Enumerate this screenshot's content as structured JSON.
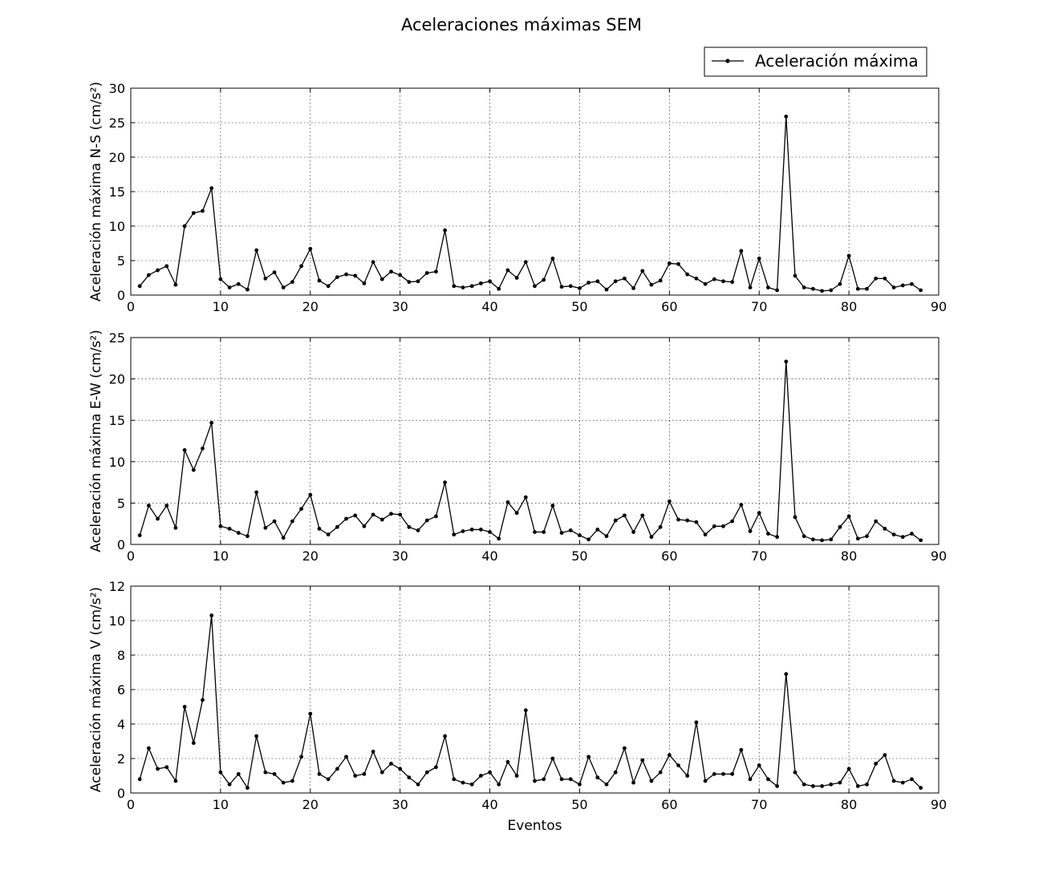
{
  "figure": {
    "title": "Aceleraciones máximas SEM",
    "xlabel": "Eventos",
    "legend": {
      "label": "Aceleración máxima",
      "position": "top-right"
    }
  },
  "chart_data": [
    {
      "type": "line",
      "title": "",
      "xlabel": "",
      "ylabel": "Aceleración máxima N-S (cm/s²)",
      "xlim": [
        0,
        90
      ],
      "ylim": [
        0,
        30
      ],
      "xticks": [
        0,
        10,
        20,
        30,
        40,
        50,
        60,
        70,
        80,
        90
      ],
      "yticks": [
        0,
        5,
        10,
        15,
        20,
        25,
        30
      ],
      "grid": true,
      "color": "#000000",
      "series": [
        {
          "x": [
            1,
            2,
            3,
            4,
            5,
            6,
            7,
            8,
            9,
            10,
            11,
            12,
            13,
            14,
            15,
            16,
            17,
            18,
            19,
            20,
            21,
            22,
            23,
            24,
            25,
            26,
            27,
            28,
            29,
            30,
            31,
            32,
            33,
            34,
            35,
            36,
            37,
            38,
            39,
            40,
            41,
            42,
            43,
            44,
            45,
            46,
            47,
            48,
            49,
            50,
            51,
            52,
            53,
            54,
            55,
            56,
            57,
            58,
            59,
            60,
            61,
            62,
            63,
            64,
            65,
            66,
            67,
            68,
            69,
            70,
            71,
            72,
            73,
            74,
            75,
            76,
            77,
            78,
            79,
            80,
            81,
            82,
            83,
            84,
            85,
            86,
            87,
            88
          ],
          "values": [
            1.3,
            2.9,
            3.6,
            4.2,
            1.5,
            10.0,
            11.9,
            12.2,
            15.5,
            2.3,
            1.1,
            1.6,
            0.8,
            6.5,
            2.4,
            3.3,
            1.1,
            1.9,
            4.2,
            6.7,
            2.1,
            1.3,
            2.6,
            3.0,
            2.8,
            1.7,
            4.8,
            2.3,
            3.4,
            2.9,
            1.9,
            2.0,
            3.2,
            3.4,
            9.4,
            1.3,
            1.1,
            1.3,
            1.7,
            2.0,
            0.9,
            3.6,
            2.5,
            4.8,
            1.3,
            2.2,
            5.3,
            1.2,
            1.3,
            1.0,
            1.8,
            2.0,
            0.8,
            2.0,
            2.4,
            1.0,
            3.5,
            1.5,
            2.1,
            4.6,
            4.5,
            3.0,
            2.4,
            1.6,
            2.3,
            2.0,
            1.9,
            6.4,
            1.1,
            5.3,
            1.1,
            0.7,
            25.9,
            2.8,
            1.1,
            0.9,
            0.6,
            0.7,
            1.6,
            5.7,
            0.9,
            0.9,
            2.4,
            2.4,
            1.1,
            1.4,
            1.6,
            0.7
          ]
        }
      ]
    },
    {
      "type": "line",
      "title": "",
      "xlabel": "",
      "ylabel": "Aceleración máxima E-W (cm/s²)",
      "xlim": [
        0,
        90
      ],
      "ylim": [
        0,
        25
      ],
      "xticks": [
        0,
        10,
        20,
        30,
        40,
        50,
        60,
        70,
        80,
        90
      ],
      "yticks": [
        0,
        5,
        10,
        15,
        20,
        25
      ],
      "grid": true,
      "color": "#000000",
      "series": [
        {
          "x": [
            1,
            2,
            3,
            4,
            5,
            6,
            7,
            8,
            9,
            10,
            11,
            12,
            13,
            14,
            15,
            16,
            17,
            18,
            19,
            20,
            21,
            22,
            23,
            24,
            25,
            26,
            27,
            28,
            29,
            30,
            31,
            32,
            33,
            34,
            35,
            36,
            37,
            38,
            39,
            40,
            41,
            42,
            43,
            44,
            45,
            46,
            47,
            48,
            49,
            50,
            51,
            52,
            53,
            54,
            55,
            56,
            57,
            58,
            59,
            60,
            61,
            62,
            63,
            64,
            65,
            66,
            67,
            68,
            69,
            70,
            71,
            72,
            73,
            74,
            75,
            76,
            77,
            78,
            79,
            80,
            81,
            82,
            83,
            84,
            85,
            86,
            87,
            88
          ],
          "values": [
            1.1,
            4.7,
            3.1,
            4.7,
            2.0,
            11.4,
            9.0,
            11.6,
            14.7,
            2.2,
            1.9,
            1.4,
            1.0,
            6.3,
            2.0,
            2.8,
            0.8,
            2.8,
            4.3,
            6.0,
            1.9,
            1.2,
            2.1,
            3.1,
            3.5,
            2.2,
            3.6,
            3.0,
            3.7,
            3.6,
            2.1,
            1.7,
            2.9,
            3.4,
            7.5,
            1.2,
            1.6,
            1.8,
            1.8,
            1.5,
            0.7,
            5.1,
            3.8,
            5.7,
            1.5,
            1.5,
            4.7,
            1.4,
            1.7,
            1.1,
            0.6,
            1.8,
            1.0,
            2.9,
            3.5,
            1.5,
            3.5,
            0.9,
            2.1,
            5.2,
            3.0,
            2.9,
            2.7,
            1.2,
            2.2,
            2.2,
            2.8,
            4.8,
            1.6,
            3.8,
            1.3,
            0.9,
            22.1,
            3.3,
            1.0,
            0.6,
            0.5,
            0.6,
            2.1,
            3.4,
            0.7,
            1.0,
            2.8,
            1.9,
            1.2,
            0.9,
            1.3,
            0.5
          ]
        }
      ]
    },
    {
      "type": "line",
      "title": "",
      "xlabel": "Eventos",
      "ylabel": "Aceleración máxima V (cm/s²)",
      "xlim": [
        0,
        90
      ],
      "ylim": [
        0,
        12
      ],
      "xticks": [
        0,
        10,
        20,
        30,
        40,
        50,
        60,
        70,
        80,
        90
      ],
      "yticks": [
        0,
        2,
        4,
        6,
        8,
        10,
        12
      ],
      "grid": true,
      "color": "#000000",
      "series": [
        {
          "x": [
            1,
            2,
            3,
            4,
            5,
            6,
            7,
            8,
            9,
            10,
            11,
            12,
            13,
            14,
            15,
            16,
            17,
            18,
            19,
            20,
            21,
            22,
            23,
            24,
            25,
            26,
            27,
            28,
            29,
            30,
            31,
            32,
            33,
            34,
            35,
            36,
            37,
            38,
            39,
            40,
            41,
            42,
            43,
            44,
            45,
            46,
            47,
            48,
            49,
            50,
            51,
            52,
            53,
            54,
            55,
            56,
            57,
            58,
            59,
            60,
            61,
            62,
            63,
            64,
            65,
            66,
            67,
            68,
            69,
            70,
            71,
            72,
            73,
            74,
            75,
            76,
            77,
            78,
            79,
            80,
            81,
            82,
            83,
            84,
            85,
            86,
            87,
            88
          ],
          "values": [
            0.8,
            2.6,
            1.4,
            1.5,
            0.7,
            5.0,
            2.9,
            5.4,
            10.3,
            1.2,
            0.5,
            1.1,
            0.3,
            3.3,
            1.2,
            1.1,
            0.6,
            0.7,
            2.1,
            4.6,
            1.1,
            0.8,
            1.4,
            2.1,
            1.0,
            1.1,
            2.4,
            1.2,
            1.7,
            1.4,
            0.9,
            0.5,
            1.2,
            1.5,
            3.3,
            0.8,
            0.6,
            0.5,
            1.0,
            1.2,
            0.5,
            1.8,
            1.0,
            4.8,
            0.7,
            0.8,
            2.0,
            0.8,
            0.8,
            0.5,
            2.1,
            0.9,
            0.5,
            1.2,
            2.6,
            0.6,
            1.9,
            0.7,
            1.2,
            2.2,
            1.6,
            1.0,
            4.1,
            0.7,
            1.1,
            1.1,
            1.1,
            2.5,
            0.8,
            1.6,
            0.8,
            0.4,
            6.9,
            1.2,
            0.5,
            0.4,
            0.4,
            0.5,
            0.6,
            1.4,
            0.4,
            0.5,
            1.7,
            2.2,
            0.7,
            0.6,
            0.8,
            0.3
          ]
        }
      ]
    }
  ]
}
